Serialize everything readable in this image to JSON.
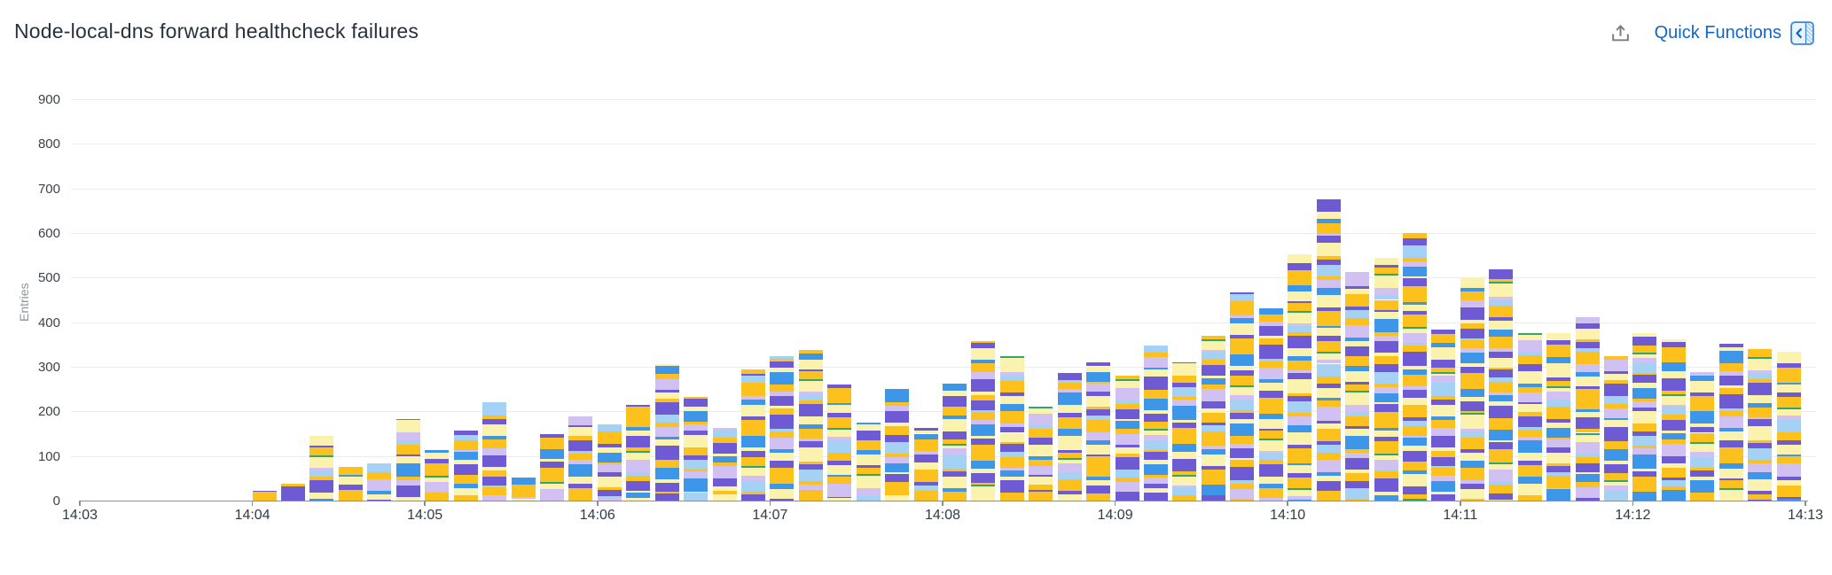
{
  "header": {
    "title": "Node-local-dns forward healthcheck failures",
    "quick_functions_label": "Quick Functions",
    "icons": [
      "export-icon",
      "collapse-panel-icon"
    ]
  },
  "colors": {
    "title_text": "#28323c",
    "link_blue": "#1565c5",
    "grid": "#ececec",
    "axis": "#8e8e8e",
    "tick_label": "#2f3b45",
    "axis_title": "#8e9398"
  },
  "chart_data": {
    "type": "bar",
    "stacked": true,
    "title": "Node-local-dns forward healthcheck failures",
    "xlabel": "",
    "ylabel": "Entries",
    "ylim": [
      0,
      900
    ],
    "yticks": [
      0,
      100,
      200,
      300,
      400,
      500,
      600,
      700,
      800,
      900
    ],
    "xticks": [
      "14:03",
      "14:04",
      "14:05",
      "14:06",
      "14:07",
      "14:08",
      "14:09",
      "14:10",
      "14:11",
      "14:12",
      "14:13"
    ],
    "bucket_seconds": 10,
    "grid": true,
    "legend_position": "none",
    "categories": [
      "14:04:00",
      "14:04:10",
      "14:04:20",
      "14:04:30",
      "14:04:40",
      "14:04:50",
      "14:05:00",
      "14:05:10",
      "14:05:20",
      "14:05:30",
      "14:05:40",
      "14:05:50",
      "14:06:00",
      "14:06:10",
      "14:06:20",
      "14:06:30",
      "14:06:40",
      "14:06:50",
      "14:07:00",
      "14:07:10",
      "14:07:20",
      "14:07:30",
      "14:07:40",
      "14:07:50",
      "14:08:00",
      "14:08:10",
      "14:08:20",
      "14:08:30",
      "14:08:40",
      "14:08:50",
      "14:09:00",
      "14:09:10",
      "14:09:20",
      "14:09:30",
      "14:09:40",
      "14:09:50",
      "14:10:00",
      "14:10:10",
      "14:10:20",
      "14:10:30",
      "14:10:40",
      "14:10:50",
      "14:11:00",
      "14:11:10",
      "14:11:20",
      "14:11:30",
      "14:11:40",
      "14:11:50",
      "14:12:00",
      "14:12:10",
      "14:12:20",
      "14:12:30",
      "14:12:40",
      "14:12:50"
    ],
    "totals": [
      22,
      38,
      148,
      75,
      85,
      183,
      130,
      167,
      232,
      55,
      150,
      200,
      177,
      220,
      322,
      251,
      177,
      294,
      324,
      360,
      267,
      175,
      263,
      163,
      263,
      358,
      323,
      231,
      287,
      325,
      300,
      365,
      310,
      382,
      470,
      432,
      553,
      675,
      515,
      545,
      600,
      383,
      500,
      520,
      386,
      402,
      412,
      323,
      386,
      386,
      295,
      351,
      341,
      337
    ],
    "palette": {
      "gold": "#fcc11c",
      "paleYellow": "#fbf2ae",
      "purple": "#6e5bd4",
      "lavender": "#d1c1f3",
      "blue": "#3e96e8",
      "lightBlue": "#a5d2f4",
      "teal": "#2fa56f"
    },
    "segment_pattern": [
      19,
      8,
      26,
      12,
      7,
      31,
      15,
      5,
      22,
      10,
      17,
      28,
      9,
      14,
      6,
      24,
      11,
      18,
      4,
      21,
      13,
      8,
      27,
      16
    ],
    "color_cycle": [
      "gold",
      "purple",
      "paleYellow",
      "blue",
      "lavender",
      "gold",
      "lightBlue",
      "purple",
      "gold",
      "paleYellow",
      "purple",
      "lavender",
      "gold",
      "blue",
      "paleYellow",
      "purple",
      "gold",
      "lightBlue",
      "lavender",
      "paleYellow",
      "teal",
      "gold",
      "purple",
      "paleYellow",
      "blue",
      "gold"
    ]
  }
}
